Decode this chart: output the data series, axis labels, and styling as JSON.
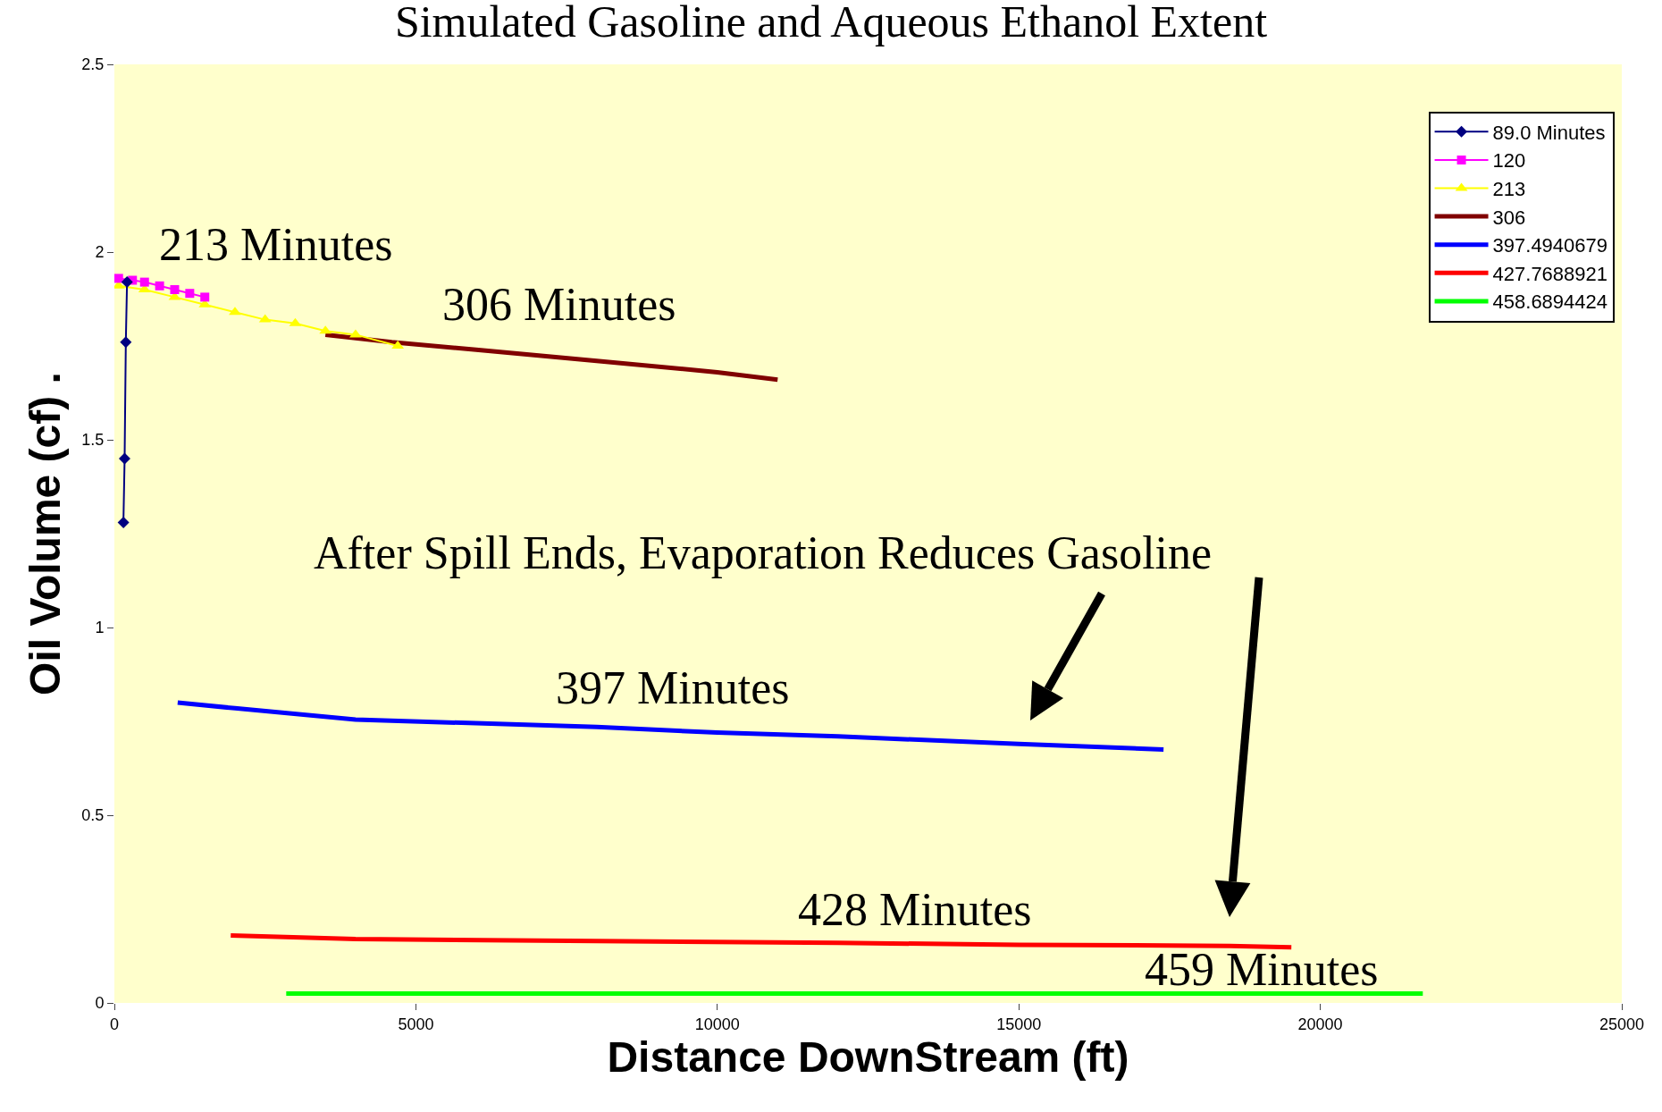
{
  "chart_data": {
    "type": "line",
    "title": "Simulated Gasoline and Aqueous Ethanol Extent",
    "xlabel": "Distance DownStream (ft)",
    "ylabel": "Oil Volume (cf) .",
    "xlim": [
      0,
      25000
    ],
    "xticks": [
      0,
      5000,
      10000,
      15000,
      20000,
      25000
    ],
    "ylim": [
      0,
      2.5
    ],
    "yticks": [
      0,
      0.5,
      1,
      1.5,
      2,
      2.5
    ],
    "grid": false,
    "legend": "top right",
    "series": [
      {
        "name": "89.0 Minutes",
        "color": "#000080",
        "marker": "diamond",
        "x": [
          150,
          170,
          190,
          210
        ],
        "values": [
          1.28,
          1.45,
          1.76,
          1.92
        ]
      },
      {
        "name": "120",
        "color": "#ff00ff",
        "marker": "square",
        "x": [
          70,
          300,
          500,
          750,
          1000,
          1250,
          1500
        ],
        "values": [
          1.93,
          1.925,
          1.92,
          1.91,
          1.9,
          1.89,
          1.88
        ]
      },
      {
        "name": "213",
        "color": "#ffff00",
        "marker": "triangle",
        "x": [
          70,
          500,
          1000,
          1500,
          2000,
          2500,
          3000,
          3500,
          4000,
          4700
        ],
        "values": [
          1.91,
          1.9,
          1.88,
          1.86,
          1.84,
          1.82,
          1.81,
          1.79,
          1.78,
          1.75
        ]
      },
      {
        "name": "306",
        "color": "#800000",
        "marker": "none",
        "x": [
          3500,
          4600,
          6000,
          8000,
          10000,
          11000
        ],
        "values": [
          1.78,
          1.76,
          1.74,
          1.71,
          1.68,
          1.66
        ]
      },
      {
        "name": "397.4940679",
        "color": "#0000ff",
        "marker": "none",
        "x": [
          1050,
          2000,
          4000,
          6000,
          8000,
          10000,
          12000,
          15000,
          17400
        ],
        "values": [
          0.8,
          0.785,
          0.755,
          0.745,
          0.735,
          0.72,
          0.71,
          0.69,
          0.675
        ]
      },
      {
        "name": "427.7688921",
        "color": "#ff0000",
        "marker": "none",
        "x": [
          1930,
          4000,
          8000,
          12000,
          15000,
          18500,
          19520
        ],
        "values": [
          0.18,
          0.17,
          0.165,
          0.16,
          0.155,
          0.152,
          0.148
        ]
      },
      {
        "name": "458.6894424",
        "color": "#00ff00",
        "marker": "none",
        "x": [
          2850,
          21700
        ],
        "values": [
          0.025,
          0.025
        ]
      }
    ],
    "annotations": [
      "213 Minutes",
      "306 Minutes",
      "After Spill Ends, Evaporation Reduces Gasoline",
      "397 Minutes",
      "428 Minutes",
      "459 Minutes"
    ]
  }
}
